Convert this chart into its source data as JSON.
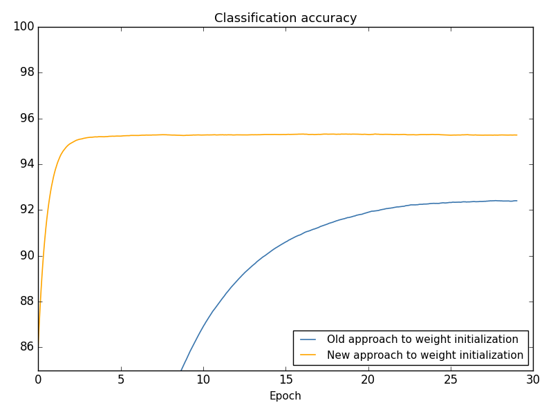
{
  "title": "Classification accuracy",
  "xlabel": "Epoch",
  "xlim": [
    0,
    30
  ],
  "ylim": [
    85,
    100
  ],
  "yticks": [
    86,
    88,
    90,
    92,
    94,
    96,
    98,
    100
  ],
  "xticks": [
    0,
    5,
    10,
    15,
    20,
    25,
    30
  ],
  "old_color": "#3a76ae",
  "new_color": "#ffa500",
  "legend_labels": [
    "Old approach to weight initialization",
    "New approach to weight initialization"
  ],
  "legend_loc": "lower right",
  "figsize": [
    8.0,
    6.0
  ],
  "dpi": 100
}
